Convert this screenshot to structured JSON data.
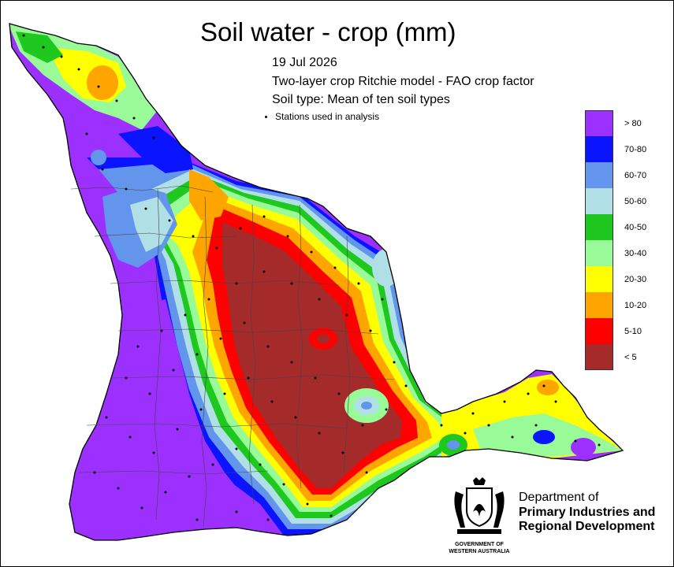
{
  "title": "Soil water - crop (mm)",
  "date": "19 Jul 2026",
  "model": "Two-layer crop Ritchie model - FAO crop factor",
  "soil_type": "Soil type: Mean of ten soil types",
  "stations_note": "Stations used in analysis",
  "legend": [
    {
      "label": "> 80",
      "color": "#9b30ff"
    },
    {
      "label": "70-80",
      "color": "#0a14ff"
    },
    {
      "label": "60-70",
      "color": "#6495ed"
    },
    {
      "label": "50-60",
      "color": "#b0e0e6"
    },
    {
      "label": "40-50",
      "color": "#1ec81e"
    },
    {
      "label": "30-40",
      "color": "#98fb98"
    },
    {
      "label": "20-30",
      "color": "#ffff00"
    },
    {
      "label": "10-20",
      "color": "#ffa500"
    },
    {
      "label": "5-10",
      "color": "#ff0000"
    },
    {
      "label": "< 5",
      "color": "#a52a2a"
    }
  ],
  "department": {
    "line1": "Department of",
    "line2": "Primary Industries and",
    "line3": "Regional Development"
  },
  "government": {
    "line1": "GOVERNMENT OF",
    "line2": "WESTERN AUSTRALIA"
  },
  "crest_icon": "wa-coat-of-arms-icon"
}
